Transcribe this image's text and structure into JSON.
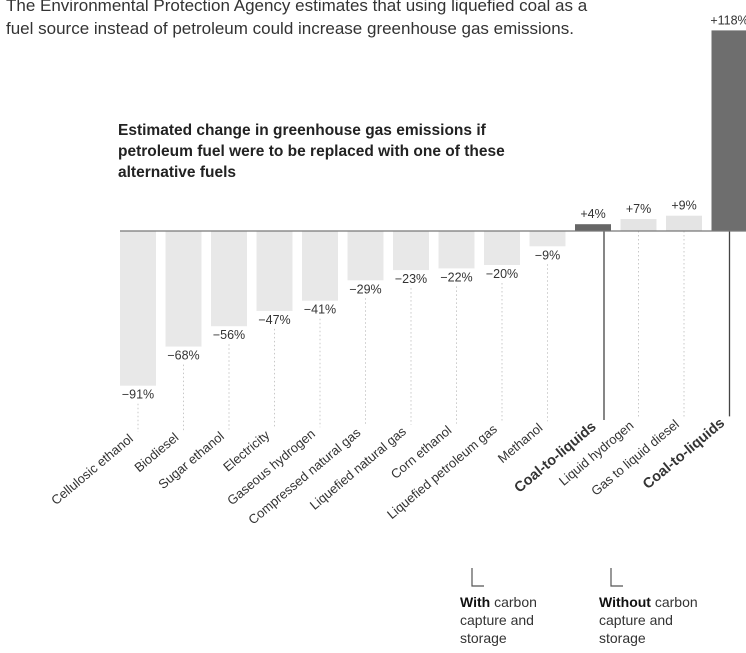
{
  "intro_text": "The Environmental Protection Agency estimates that using liquefied coal as a fuel source instead of petroleum could increase greenhouse gas emissions.",
  "chart_data": {
    "type": "bar",
    "title": "Estimated change in greenhouse gas emissions if petroleum fuel were to be replaced with one of these alternative fuels",
    "xlabel": "",
    "ylabel": "",
    "ylim": [
      -91,
      118
    ],
    "grid": false,
    "legend": "none",
    "categories": [
      "Cellulosic ethanol",
      "Biodiesel",
      "Sugar ethanol",
      "Electricity",
      "Gaseous hydrogen",
      "Compressed natural gas",
      "Liquefied natural gas",
      "Corn ethanol",
      "Liquefied petroleum gas",
      "Methanol",
      "Coal-to-liquids",
      "Liquid hydrogen",
      "Gas to liquid diesel",
      "Coal-to-liquids"
    ],
    "values": [
      -91,
      -68,
      -56,
      -47,
      -41,
      -29,
      -23,
      -22,
      -20,
      -9,
      4,
      7,
      9,
      118
    ],
    "value_labels": [
      "−91%",
      "−68%",
      "−56%",
      "−47%",
      "−41%",
      "−29%",
      "−23%",
      "−22%",
      "−20%",
      "−9%",
      "+4%",
      "+7%",
      "+9%",
      "+118%"
    ],
    "colors": {
      "negative": "#e8e8e8",
      "positive": "#e4e4e4",
      "highlight_small": "#666666",
      "highlight_large": "#6e6e6e",
      "zero_line": "#777777",
      "text": "#333333"
    }
  },
  "annotations": {
    "with": {
      "bold": "With",
      "rest_line1": " carbon",
      "line2": "capture and",
      "line3": "storage"
    },
    "without": {
      "bold": "Without",
      "rest_line1": " carbon",
      "line2": "capture and",
      "line3": "storage"
    }
  }
}
